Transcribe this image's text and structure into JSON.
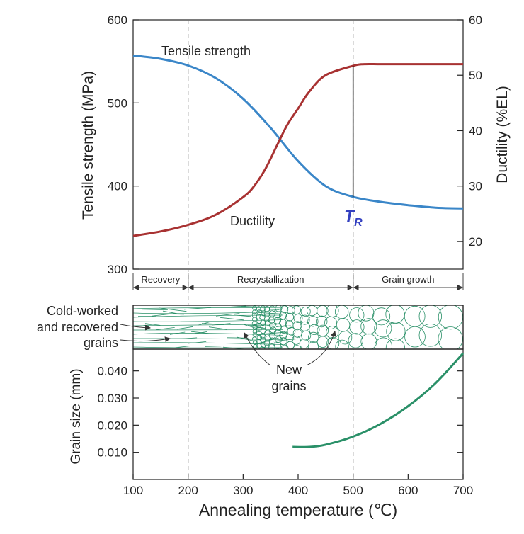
{
  "chart_data": [
    {
      "type": "line",
      "ylabel_left": "Tensile strength (MPa)",
      "ylabel_right": "Ductility (%EL)",
      "ylim_left": [
        300,
        600
      ],
      "ylim_right": [
        15,
        60
      ],
      "yticks_left": [
        "300",
        "400",
        "500",
        "600"
      ],
      "yticks_right": [
        "20",
        "30",
        "40",
        "50",
        "60"
      ],
      "xlim": [
        100,
        700
      ],
      "series": [
        {
          "name": "Tensile strength",
          "color": "#3a86c8",
          "axis": "left",
          "x": [
            100,
            150,
            200,
            250,
            300,
            350,
            400,
            450,
            500,
            550,
            600,
            650,
            700
          ],
          "y": [
            557,
            553,
            545,
            530,
            505,
            470,
            430,
            400,
            387,
            381,
            377,
            374,
            373
          ]
        },
        {
          "name": "Ductility",
          "color": "#a83232",
          "axis": "right",
          "x": [
            100,
            150,
            200,
            250,
            300,
            320,
            340,
            360,
            380,
            400,
            420,
            450,
            500,
            520,
            550,
            600,
            650,
            700
          ],
          "y": [
            21,
            21.8,
            23,
            24.8,
            28,
            30,
            33,
            37,
            41,
            44,
            47,
            50,
            51.7,
            52,
            52,
            52,
            52,
            52
          ]
        }
      ],
      "annotations": {
        "ts_label": "Tensile strength",
        "duct_label": "Ductility",
        "tr_main": "T",
        "tr_sub": "R",
        "tr_x": 500
      },
      "vlines_x": [
        200,
        500
      ]
    },
    {
      "type": "line",
      "ylabel": "Grain size (mm)",
      "xlabel": "Annealing temperature (℃)",
      "xlim": [
        100,
        700
      ],
      "ylim": [
        0,
        0.048
      ],
      "xticks": [
        "100",
        "200",
        "300",
        "400",
        "500",
        "600",
        "700"
      ],
      "yticks": [
        "0.010",
        "0.020",
        "0.030",
        "0.040"
      ],
      "series": [
        {
          "color": "#2a9068",
          "x": [
            390,
            420,
            450,
            500,
            550,
            600,
            650,
            700
          ],
          "y": [
            0.012,
            0.012,
            0.0128,
            0.0158,
            0.0205,
            0.027,
            0.0355,
            0.0465
          ]
        }
      ]
    }
  ],
  "stages": [
    {
      "label": "Recovery",
      "from": 100,
      "to": 200
    },
    {
      "label": "Recrystallization",
      "from": 200,
      "to": 500
    },
    {
      "label": "Grain growth",
      "from": 500,
      "to": 700
    }
  ],
  "labels": {
    "cold_worked_1": "Cold-worked",
    "cold_worked_2": "and recovered",
    "cold_worked_3": "grains",
    "new_grains_1": "New",
    "new_grains_2": "grains"
  },
  "colors": {
    "microstructure": "#2a9068",
    "tr": "#3340c0"
  }
}
